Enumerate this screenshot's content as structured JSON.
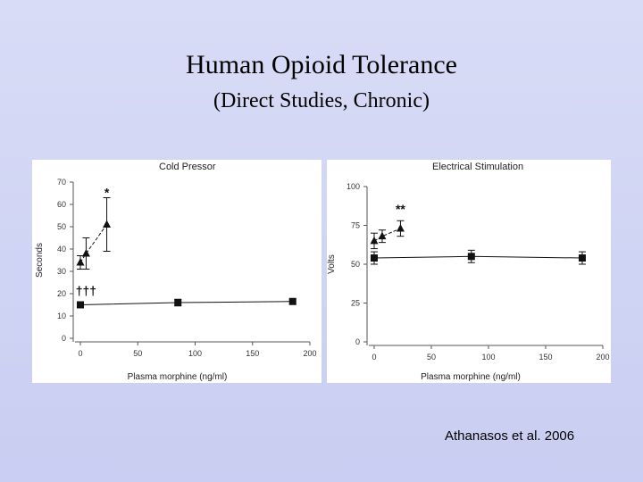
{
  "slide": {
    "title": "Human Opioid Tolerance",
    "subtitle": "(Direct Studies, Chronic)",
    "citation": "Athanasos et al. 2006"
  },
  "chart_data": [
    {
      "type": "line",
      "title": "Cold Pressor",
      "xlabel": "Plasma morphine (ng/ml)",
      "ylabel": "Seconds",
      "xlim": [
        0,
        200
      ],
      "ylim": [
        0,
        70
      ],
      "x_ticks": [
        0,
        50,
        100,
        150,
        200
      ],
      "y_ticks": [
        0,
        10,
        20,
        30,
        40,
        50,
        60,
        70
      ],
      "x_tick_labels": [
        "0",
        "50",
        "100",
        "150",
        "200"
      ],
      "y_tick_labels": [
        "0",
        "10",
        "20",
        "30",
        "40",
        "50",
        "60",
        "70"
      ],
      "grid": false,
      "series": [
        {
          "marker": "triangle",
          "style": "dashed",
          "x": [
            0,
            5,
            23
          ],
          "y": [
            34,
            38,
            51
          ],
          "err": [
            3,
            7,
            12
          ],
          "annotation": {
            "text": "*",
            "x": 23,
            "y": 65
          }
        },
        {
          "marker": "square",
          "style": "solid",
          "x": [
            0,
            85,
            185
          ],
          "y": [
            15,
            16,
            16.5
          ],
          "err": [
            1,
            1.5,
            1
          ],
          "annotation": {
            "text": "†††",
            "x": 5,
            "y": 21
          }
        }
      ]
    },
    {
      "type": "line",
      "title": "Electrical Stimulation",
      "xlabel": "Plasma morphine (ng/ml)",
      "ylabel": "Volts",
      "xlim": [
        0,
        200
      ],
      "ylim": [
        0,
        100
      ],
      "x_ticks": [
        0,
        50,
        100,
        150,
        200
      ],
      "y_ticks": [
        0,
        25,
        50,
        75,
        100
      ],
      "x_tick_labels": [
        "0",
        "50",
        "100",
        "150",
        "200"
      ],
      "y_tick_labels": [
        "0",
        "25",
        "50",
        "75",
        "100"
      ],
      "grid": false,
      "series": [
        {
          "marker": "triangle",
          "style": "dashed",
          "x": [
            0,
            7,
            23
          ],
          "y": [
            65,
            68,
            73
          ],
          "err": [
            5,
            4,
            5
          ],
          "annotation": {
            "text": "**",
            "x": 23,
            "y": 85
          }
        },
        {
          "marker": "square",
          "style": "solid",
          "x": [
            0,
            85,
            182
          ],
          "y": [
            54,
            55,
            54
          ],
          "err": [
            4,
            4,
            4
          ]
        }
      ]
    }
  ]
}
